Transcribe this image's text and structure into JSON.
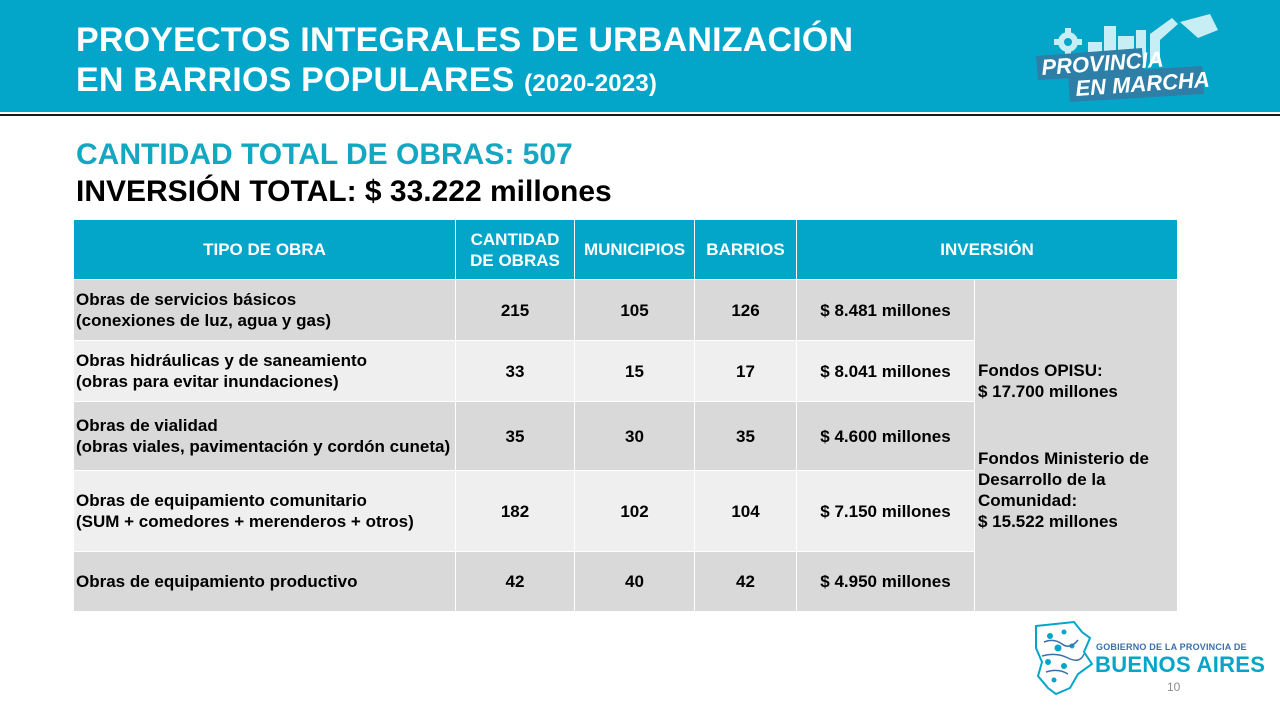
{
  "header": {
    "title_line1": "PROYECTOS INTEGRALES DE URBANIZACIÓN",
    "title_line2": "EN BARRIOS POPULARES",
    "title_years": "(2020-2023)",
    "brand_logo_line1": "PROVINCIA",
    "brand_logo_line2": "EN MARCHA",
    "banner_color": "#03a6c8"
  },
  "summary": {
    "count_line": "CANTIDAD TOTAL DE OBRAS: 507",
    "investment_line": "INVERSIÓN TOTAL: $ 33.222 millones"
  },
  "table": {
    "columns": [
      "TIPO DE OBRA",
      "CANTIDAD DE OBRAS",
      "MUNICIPIOS",
      "BARRIOS",
      "INVERSIÓN"
    ],
    "rows": [
      {
        "type_line1": "Obras de servicios básicos",
        "type_line2": "(conexiones de luz, agua y gas)",
        "cantidad": "215",
        "municipios": "105",
        "barrios": "126",
        "inversion": "$ 8.481 millones"
      },
      {
        "type_line1": "Obras hidráulicas y de saneamiento",
        "type_line2": "(obras para evitar inundaciones)",
        "cantidad": "33",
        "municipios": "15",
        "barrios": "17",
        "inversion": "$ 8.041 millones"
      },
      {
        "type_line1": "Obras de vialidad",
        "type_line2": "(obras viales, pavimentación y cordón cuneta)",
        "cantidad": "35",
        "municipios": "30",
        "barrios": "35",
        "inversion": "$ 4.600 millones"
      },
      {
        "type_line1": "Obras de equipamiento comunitario",
        "type_line2": "(SUM + comedores + merenderos + otros)",
        "cantidad": "182",
        "municipios": "102",
        "barrios": "104",
        "inversion": "$ 7.150 millones"
      },
      {
        "type_line1": "Obras de equipamiento productivo",
        "type_line2": "",
        "cantidad": "42",
        "municipios": "40",
        "barrios": "42",
        "inversion": "$ 4.950 millones"
      }
    ],
    "funds": {
      "opisu_label": "Fondos OPISU:",
      "opisu_amount": "$ 17.700 millones",
      "ministerio_label": "Fondos Ministerio de Desarrollo de la Comunidad:",
      "ministerio_amount": "$ 15.522 millones"
    }
  },
  "footer": {
    "gov_line": "GOBIERNO DE LA PROVINCIA DE",
    "province": "BUENOS AIRES",
    "page_number": "10"
  }
}
